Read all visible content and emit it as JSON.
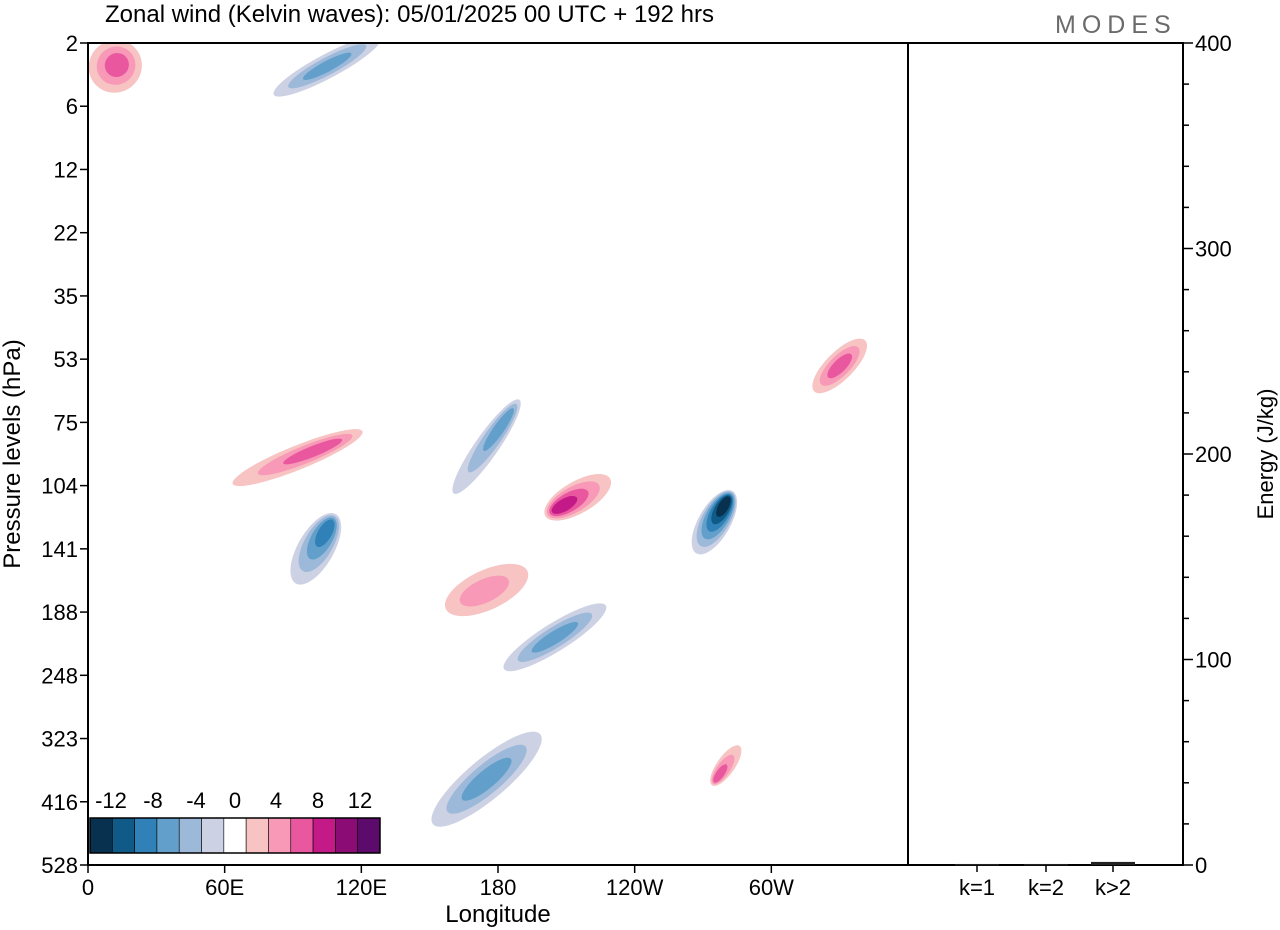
{
  "logo": "MODES",
  "chart_data": [
    {
      "type": "heatmap",
      "title": "Zonal wind (Kelvin waves):  05/01/2025  00 UTC  + 192 hrs",
      "xlabel": "Longitude",
      "ylabel": "Pressure levels (hPa)",
      "x_ticks": [
        "0",
        "60E",
        "120E",
        "180",
        "120W",
        "60W"
      ],
      "x_tick_degrees": [
        0,
        60,
        120,
        180,
        240,
        300
      ],
      "xlim_degrees": [
        0,
        360
      ],
      "y_ticks": [
        "2",
        "6",
        "12",
        "22",
        "35",
        "53",
        "75",
        "104",
        "141",
        "188",
        "248",
        "323",
        "416",
        "528"
      ],
      "y_axis": "pressure levels, top 2 hPa, bottom 528 hPa",
      "colorbar_labels": [
        "-12",
        "-8",
        "-4",
        "0",
        "4",
        "8",
        "12"
      ],
      "colorbar_colors": [
        "#08314f",
        "#0f5a86",
        "#2f81b7",
        "#62a0cb",
        "#9db9da",
        "#cdd1e4",
        "#ffffff",
        "#f7c3c3",
        "#f799b7",
        "#e9579f",
        "#c41a88",
        "#8b0c74",
        "#5c0a6b"
      ],
      "features": [
        {
          "sign": "negative",
          "lon": 100,
          "level": "141",
          "peak": -10
        },
        {
          "sign": "negative",
          "lon": 275,
          "level": "124",
          "peak": -14
        },
        {
          "sign": "negative",
          "lon": 205,
          "level": "210",
          "peak": -6
        },
        {
          "sign": "negative",
          "lon": 105,
          "level": "3",
          "peak": -8
        },
        {
          "sign": "negative",
          "lon": 175,
          "level": "85",
          "peak": -6
        },
        {
          "sign": "negative",
          "lon": 175,
          "level": "380",
          "peak": -6
        },
        {
          "sign": "positive",
          "lon": 215,
          "level": "110",
          "peak": 9
        },
        {
          "sign": "positive",
          "lon": 92,
          "level": "90",
          "peak": 8
        },
        {
          "sign": "positive",
          "lon": 280,
          "level": "360",
          "peak": 7
        },
        {
          "sign": "positive",
          "lon": 330,
          "level": "55",
          "peak": 6
        },
        {
          "sign": "positive",
          "lon": 12,
          "level": "3",
          "peak": 6
        },
        {
          "sign": "positive",
          "lon": 175,
          "level": "170",
          "peak": 5
        }
      ]
    },
    {
      "type": "bar",
      "ylabel": "Energy (J/kg)",
      "categories": [
        "k=1",
        "k=2",
        "k>2"
      ],
      "values": [
        0.5,
        0.5,
        1.5
      ],
      "ylim": [
        0,
        400
      ],
      "y_ticks": [
        0,
        100,
        200,
        300,
        400
      ]
    }
  ]
}
